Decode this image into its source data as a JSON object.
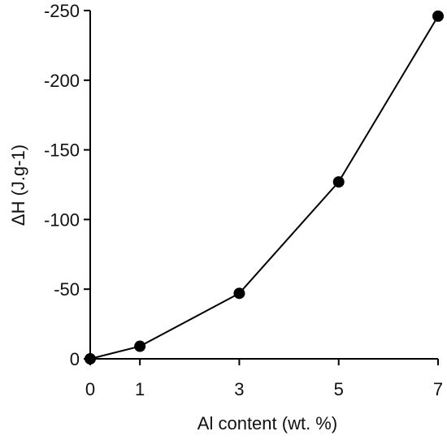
{
  "chart_data": {
    "type": "line",
    "title": "",
    "xlabel": "Al  content (wt. %)",
    "ylabel": "ΔH (J.g-1)",
    "x": [
      0,
      1,
      3,
      5,
      7
    ],
    "series": [
      {
        "values": [
          0,
          -9,
          -47,
          -127,
          -246
        ]
      }
    ],
    "xticks": [
      0,
      1,
      3,
      5,
      7
    ],
    "xtick_labels": [
      "0",
      "1",
      "3",
      "5",
      "7"
    ],
    "yticks": [
      0,
      -50,
      -100,
      -150,
      -200,
      -250
    ],
    "ytick_labels": [
      "0",
      "-50",
      "-100",
      "-150",
      "-200",
      "-250"
    ],
    "xlim": [
      0,
      7
    ],
    "ylim": [
      0,
      -250
    ],
    "y_axis_inverted": true,
    "grid": false,
    "legend": "none",
    "marker": "filled-circle",
    "line_color": "#000000",
    "marker_color": "#000000"
  }
}
